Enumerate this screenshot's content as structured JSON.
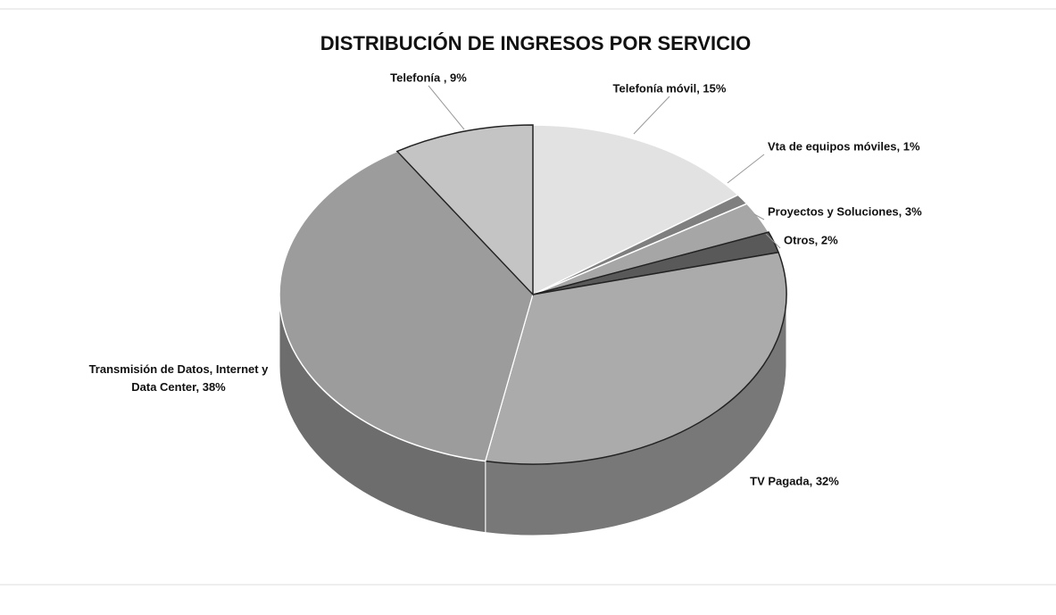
{
  "chart_data": {
    "type": "pie",
    "title": "DISTRIBUCIÓN DE INGRESOS POR SERVICIO",
    "categories": [
      "Telefonía móvil",
      "Vta de equipos móviles",
      "Proyectos y Soluciones",
      "Otros",
      "TV Pagada",
      "Transmisión de Datos, Internet y Data Center",
      "Telefonía"
    ],
    "values": [
      15,
      1,
      3,
      2,
      32,
      38,
      9
    ],
    "value_labels": [
      "Telefonía móvil, 15%",
      "Vta de equipos móviles, 1%",
      "Proyectos y Soluciones,  3%",
      "Otros, 2%",
      "TV Pagada,  32%",
      "Transmisión de Datos, Internet y Data Center, 38%",
      "Telefonía , 9%"
    ],
    "colors": [
      "#e2e2e2",
      "#7f7f7f",
      "#a6a6a6",
      "#595959",
      "#ababab",
      "#9c9c9c",
      "#c4c4c4"
    ]
  }
}
